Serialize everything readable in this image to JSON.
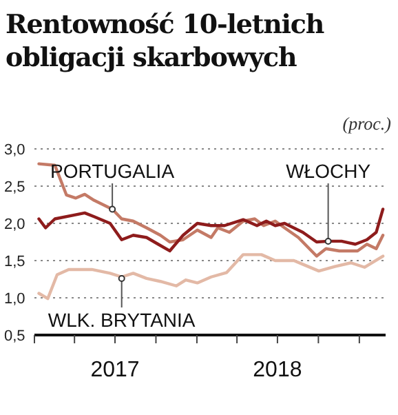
{
  "chart_data": {
    "type": "line",
    "title": "Rentowność 10-letnich obligacji skarbowych",
    "subtitle": "(proc.)",
    "series": [
      {
        "color": "#c47a66",
        "x": [
          "2017-01-11",
          "2017-02-16",
          "2017-03-14",
          "2017-04-04",
          "2017-04-24",
          "2017-05-15",
          "2017-06-25",
          "2017-07-16",
          "2017-08-11",
          "2017-09-10",
          "2017-10-11",
          "2017-11-01",
          "2017-12-01",
          "2018-01-02",
          "2018-02-02",
          "2018-02-17",
          "2018-03-15",
          "2018-04-15",
          "2018-05-11",
          "2018-05-31",
          "2018-06-26",
          "2018-07-17",
          "2018-08-17",
          "2018-09-27",
          "2018-10-18",
          "2018-11-17",
          "2018-12-28",
          "2019-01-18",
          "2019-02-08",
          "2019-02-23"
        ],
        "values": [
          2.8,
          2.78,
          2.38,
          2.34,
          2.39,
          2.31,
          2.19,
          2.06,
          2.03,
          1.94,
          1.84,
          1.75,
          1.78,
          1.91,
          1.81,
          1.94,
          1.88,
          2.03,
          2.06,
          1.97,
          2.03,
          1.94,
          1.81,
          1.56,
          1.66,
          1.63,
          1.63,
          1.72,
          1.66,
          1.84
        ]
      },
      {
        "color": "#8e1c1c",
        "x": [
          "2017-01-11",
          "2017-01-26",
          "2017-02-16",
          "2017-03-30",
          "2017-04-24",
          "2017-05-15",
          "2017-06-20",
          "2017-07-16",
          "2017-08-11",
          "2017-09-10",
          "2017-10-06",
          "2017-11-01",
          "2017-12-01",
          "2018-01-02",
          "2018-02-02",
          "2018-03-04",
          "2018-04-15",
          "2018-05-16",
          "2018-06-06",
          "2018-06-26",
          "2018-07-17",
          "2018-08-27",
          "2018-09-27",
          "2018-10-23",
          "2018-11-22",
          "2018-12-23",
          "2019-01-18",
          "2019-02-08",
          "2019-02-23"
        ],
        "values": [
          2.06,
          1.94,
          2.06,
          2.11,
          2.14,
          2.09,
          2.0,
          1.78,
          1.84,
          1.81,
          1.72,
          1.63,
          1.84,
          2.0,
          1.97,
          1.97,
          2.05,
          1.97,
          2.03,
          1.97,
          2.0,
          1.88,
          1.75,
          1.76,
          1.76,
          1.72,
          1.78,
          1.88,
          2.19
        ]
      },
      {
        "color": "#e3b9a6",
        "x": [
          "2017-01-11",
          "2017-01-31",
          "2017-02-21",
          "2017-03-19",
          "2017-05-10",
          "2017-06-20",
          "2017-07-16",
          "2017-08-11",
          "2017-09-10",
          "2017-10-11",
          "2017-11-16",
          "2017-12-07",
          "2018-01-02",
          "2018-02-02",
          "2018-03-09",
          "2018-04-15",
          "2018-05-26",
          "2018-06-26",
          "2018-08-07",
          "2018-08-27",
          "2018-10-02",
          "2018-11-07",
          "2018-12-13",
          "2019-01-13",
          "2019-02-23"
        ],
        "values": [
          1.06,
          0.99,
          1.31,
          1.38,
          1.38,
          1.33,
          1.28,
          1.33,
          1.26,
          1.22,
          1.16,
          1.24,
          1.2,
          1.28,
          1.34,
          1.58,
          1.58,
          1.5,
          1.5,
          1.45,
          1.36,
          1.42,
          1.47,
          1.41,
          1.56
        ]
      }
    ],
    "annotations": [
      {
        "text": "PORTUGALIA",
        "x": "2017-06-25",
        "y": 2.19
      },
      {
        "text": "WŁOCHY",
        "x": "2018-10-23",
        "y": 1.76
      },
      {
        "text": "WLK. BRYTANIA",
        "x": "2017-07-16",
        "y": 1.26
      }
    ],
    "xlim": [
      "2017-01-01",
      "2019-03-01"
    ],
    "xticks": [
      {
        "value": "2017-01-01",
        "label": null
      },
      {
        "value": "2017-04-01",
        "label": null
      },
      {
        "value": "2017-07-01",
        "label": "2017"
      },
      {
        "value": "2017-10-01",
        "label": null
      },
      {
        "value": "2018-01-01",
        "label": null
      },
      {
        "value": "2018-04-01",
        "label": null
      },
      {
        "value": "2018-07-01",
        "label": "2018"
      },
      {
        "value": "2018-10-01",
        "label": null
      },
      {
        "value": "2019-01-01",
        "label": null
      }
    ],
    "ylim": [
      0.5,
      3.0
    ],
    "yticks": [
      {
        "value": 0.5,
        "label": "0,5"
      },
      {
        "value": 1.0,
        "label": "1,0"
      },
      {
        "value": 1.5,
        "label": "1,5"
      },
      {
        "value": 2.0,
        "label": "2,0"
      },
      {
        "value": 2.5,
        "label": "2,5"
      },
      {
        "value": 3.0,
        "label": "3,0"
      }
    ],
    "grid": "y"
  }
}
